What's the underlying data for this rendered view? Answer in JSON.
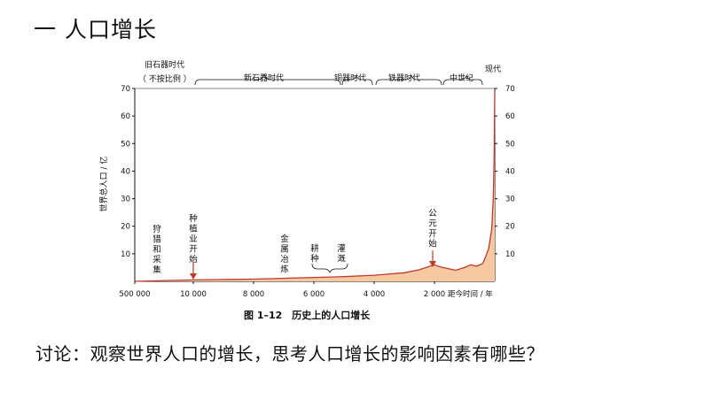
{
  "slide": {
    "title": "一  人口增长",
    "question": "讨论：观察世界人口的增长，思考人口增长的影响因素有哪些？"
  },
  "chart_data": {
    "type": "area",
    "title": "",
    "caption": "图 1–12　历史上的人口增长",
    "ylabel": "世界总人口 / 亿",
    "xlabel": "距今时间 / 年",
    "ylim": [
      0,
      70
    ],
    "yticks": [
      10,
      20,
      30,
      40,
      50,
      60,
      70
    ],
    "xticks": [
      "500 000",
      "10 000",
      "8 000",
      "6 000",
      "4 000",
      "2 000"
    ],
    "x_scale": "broken: 500 000 → 10 000 compressed, then linear 10 000 → 0",
    "grid": false,
    "fill_color": "#f6c9a3",
    "line_color": "#c0392b",
    "series": [
      {
        "x": [
          500000,
          10000,
          8000,
          6000,
          5000,
          4000,
          3000,
          2500,
          2000,
          1800,
          1500,
          1300,
          1000,
          800,
          600,
          400,
          300,
          200,
          100,
          50,
          20,
          0
        ],
        "y": [
          0.0,
          0.5,
          0.8,
          1.4,
          1.7,
          2.2,
          3.1,
          4.2,
          6.0,
          5.2,
          4.5,
          4.0,
          5.0,
          6.0,
          5.5,
          6.5,
          9.0,
          12.0,
          19.0,
          30.0,
          45.0,
          69.0
        ]
      }
    ],
    "eras": [
      "旧石器时代",
      "（ 不按比例 ）",
      "新石器时代",
      "铜器时代",
      "铁器时代",
      "中世纪",
      "现代"
    ],
    "annotations": {
      "hunting": "狩猎和采集",
      "planting": "种植业开始",
      "metal": "金属冶炼",
      "tilling": "耕种",
      "irrigation": "灌溉",
      "ad": "公元开始"
    }
  }
}
